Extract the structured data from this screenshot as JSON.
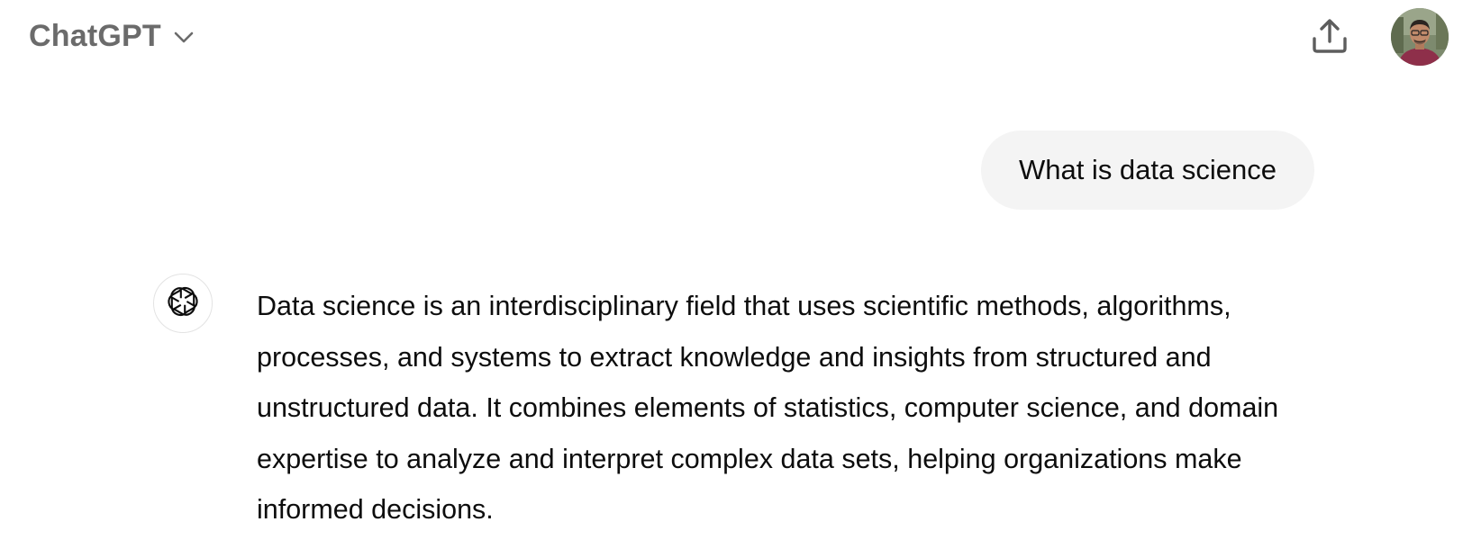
{
  "header": {
    "model_name": "ChatGPT",
    "model_dropdown_icon": "chevron-down-icon",
    "share_icon": "share-upload-icon",
    "avatar_icon": "user-avatar"
  },
  "conversation": {
    "user_message": "What is data science",
    "assistant_icon": "openai-logo-icon",
    "assistant_message": "Data science is an interdisciplinary field that uses scientific methods, algorithms, processes, and systems to extract knowledge and insights from structured and unstructured data. It combines elements of statistics, computer science, and domain expertise to analyze and interpret complex data sets, helping organizations make informed decisions."
  },
  "colors": {
    "background": "#ffffff",
    "header_text": "#6b6b6b",
    "user_bubble": "#f4f4f4",
    "text": "#0d0d0d",
    "avatar_border": "#e3e3e3"
  }
}
